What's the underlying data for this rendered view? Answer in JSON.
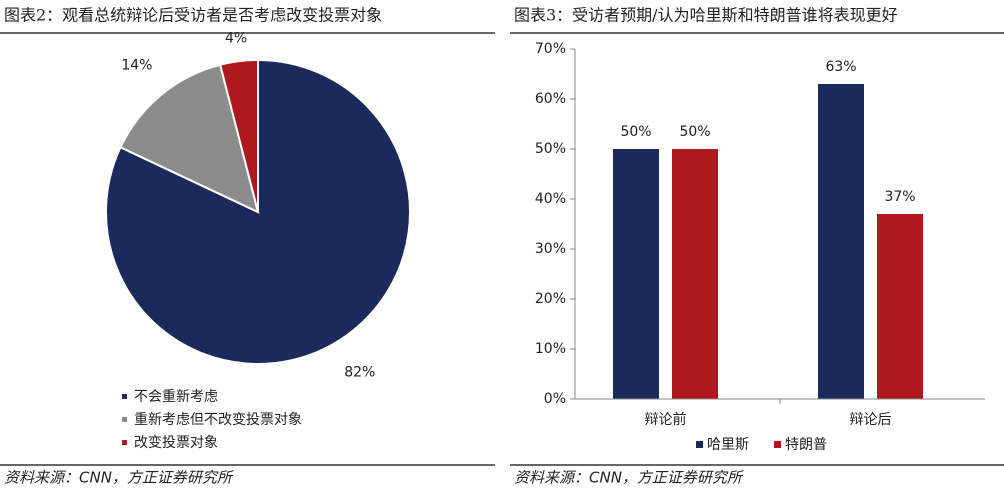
{
  "chart_data": [
    {
      "type": "pie",
      "title": "图表2：观看总统辩论后受访者是否考虑改变投票对象",
      "categories": [
        "不会重新考虑",
        "重新考虑但不改变投票对象",
        "改变投票对象"
      ],
      "values": [
        82,
        14,
        4
      ],
      "value_labels": [
        "82%",
        "14%",
        "4%"
      ],
      "colors": [
        "#1b2a5c",
        "#8c8c8c",
        "#b0181f"
      ],
      "source": "资料来源：CNN，方正证券研究所"
    },
    {
      "type": "bar",
      "title": "图表3：受访者预期/认为哈里斯和特朗普谁将表现更好",
      "categories": [
        "辩论前",
        "辩论后"
      ],
      "series": [
        {
          "name": "哈里斯",
          "color": "#1b2a5c",
          "values": [
            50,
            63
          ],
          "value_labels": [
            "50%",
            "63%"
          ]
        },
        {
          "name": "特朗普",
          "color": "#b0181f",
          "values": [
            50,
            37
          ],
          "value_labels": [
            "50%",
            "37%"
          ]
        }
      ],
      "ylim": [
        0,
        70
      ],
      "yticks": [
        {
          "value": 0,
          "label": "0%"
        },
        {
          "value": 10,
          "label": "10%"
        },
        {
          "value": 20,
          "label": "20%"
        },
        {
          "value": 30,
          "label": "30%"
        },
        {
          "value": 40,
          "label": "40%"
        },
        {
          "value": 50,
          "label": "50%"
        },
        {
          "value": 60,
          "label": "60%"
        },
        {
          "value": 70,
          "label": "70%"
        }
      ],
      "source": "资料来源：CNN，方正证券研究所"
    }
  ]
}
